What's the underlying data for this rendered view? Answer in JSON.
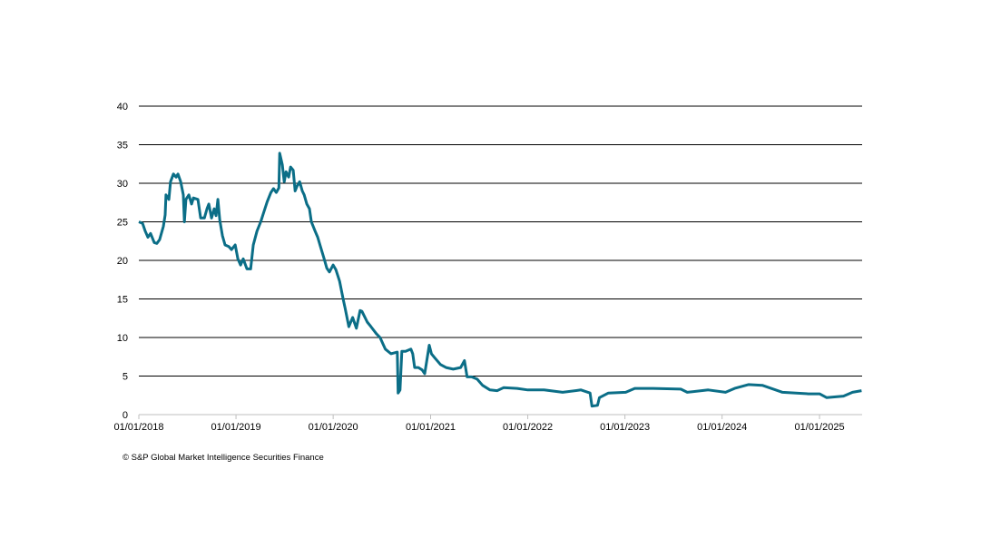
{
  "chart_data": {
    "type": "line",
    "title": "",
    "xlabel": "",
    "ylabel": "",
    "ylim": [
      0,
      40
    ],
    "yticks": [
      0,
      5,
      10,
      15,
      20,
      25,
      30,
      35,
      40
    ],
    "xlim": [
      "2018-01-01",
      "2025-06-10"
    ],
    "xticks": [
      "2018-01-01",
      "2019-01-01",
      "2020-01-01",
      "2021-01-01",
      "2022-01-01",
      "2023-01-01",
      "2024-01-01",
      "2025-01-01"
    ],
    "xtick_labels": [
      "01/01/2018",
      "01/01/2019",
      "01/01/2020",
      "01/01/2021",
      "01/01/2022",
      "01/01/2023",
      "01/01/2024",
      "01/01/2025"
    ],
    "grid": "horizontal",
    "line_color": "#0b6e87",
    "series": [
      {
        "x": [
          "2018-01-01",
          "2018-01-15",
          "2018-01-25",
          "2018-02-04",
          "2018-02-14",
          "2018-02-28",
          "2018-03-10",
          "2018-03-20",
          "2018-04-03",
          "2018-04-10",
          "2018-04-13",
          "2018-04-24",
          "2018-04-30",
          "2018-05-11",
          "2018-05-21",
          "2018-05-28",
          "2018-06-07",
          "2018-06-17",
          "2018-06-21",
          "2018-06-27",
          "2018-07-08",
          "2018-07-18",
          "2018-07-25",
          "2018-08-11",
          "2018-08-21",
          "2018-09-04",
          "2018-09-14",
          "2018-09-21",
          "2018-10-01",
          "2018-10-11",
          "2018-10-18",
          "2018-10-25",
          "2018-11-01",
          "2018-11-11",
          "2018-11-21",
          "2018-12-05",
          "2018-12-15",
          "2018-12-29",
          "2019-01-08",
          "2019-01-18",
          "2019-01-28",
          "2019-02-11",
          "2019-02-25",
          "2019-03-07",
          "2019-03-21",
          "2019-04-04",
          "2019-04-14",
          "2019-04-28",
          "2019-05-12",
          "2019-05-22",
          "2019-06-01",
          "2019-06-11",
          "2019-06-14",
          "2019-06-24",
          "2019-07-01",
          "2019-07-08",
          "2019-07-18",
          "2019-07-25",
          "2019-08-04",
          "2019-08-11",
          "2019-08-18",
          "2019-08-28",
          "2019-09-07",
          "2019-09-14",
          "2019-09-24",
          "2019-10-04",
          "2019-10-11",
          "2019-10-25",
          "2019-11-04",
          "2019-11-14",
          "2019-11-28",
          "2019-12-08",
          "2019-12-18",
          "2020-01-01",
          "2020-01-11",
          "2020-01-25",
          "2020-02-08",
          "2020-02-15",
          "2020-02-29",
          "2020-03-14",
          "2020-03-28",
          "2020-04-11",
          "2020-04-18",
          "2020-05-08",
          "2020-05-22",
          "2020-06-11",
          "2020-06-25",
          "2020-07-15",
          "2020-08-05",
          "2020-08-29",
          "2020-09-01",
          "2020-09-08",
          "2020-09-15",
          "2020-09-29",
          "2020-10-19",
          "2020-10-26",
          "2020-11-02",
          "2020-11-16",
          "2020-11-30",
          "2020-12-10",
          "2020-12-27",
          "2021-01-04",
          "2021-01-18",
          "2021-02-07",
          "2021-02-28",
          "2021-03-27",
          "2021-04-24",
          "2021-05-08",
          "2021-05-18",
          "2021-06-04",
          "2021-06-25",
          "2021-07-15",
          "2021-08-12",
          "2021-09-08",
          "2021-10-02",
          "2021-11-22",
          "2022-01-01",
          "2022-03-03",
          "2022-05-12",
          "2022-07-20",
          "2022-08-23",
          "2022-08-30",
          "2022-09-20",
          "2022-09-27",
          "2022-10-31",
          "2023-01-04",
          "2023-02-07",
          "2023-04-17",
          "2023-07-30",
          "2023-08-23",
          "2023-11-10",
          "2024-01-14",
          "2024-02-17",
          "2024-04-09",
          "2024-05-31",
          "2024-08-15",
          "2024-11-20",
          "2025-01-01",
          "2025-01-28",
          "2025-04-01",
          "2025-05-05",
          "2025-06-08"
        ],
        "y": [
          25.0,
          24.8,
          23.8,
          23.0,
          23.5,
          22.3,
          22.2,
          22.7,
          24.4,
          25.9,
          28.5,
          27.9,
          30.2,
          31.2,
          30.8,
          31.2,
          30.2,
          28.5,
          25.0,
          27.9,
          28.5,
          27.3,
          28.1,
          27.9,
          25.5,
          25.5,
          26.7,
          27.3,
          25.5,
          26.7,
          25.8,
          27.9,
          25.2,
          23.2,
          22.0,
          21.8,
          21.4,
          22.0,
          20.2,
          19.4,
          20.2,
          18.9,
          18.9,
          22.0,
          23.8,
          25.0,
          26.1,
          27.6,
          28.8,
          29.3,
          28.8,
          29.4,
          33.9,
          32.4,
          30.2,
          31.5,
          30.8,
          32.1,
          31.7,
          29.0,
          29.6,
          30.2,
          29.0,
          28.5,
          27.3,
          26.7,
          25.0,
          23.8,
          23.0,
          21.8,
          20.2,
          19.0,
          18.5,
          19.4,
          18.8,
          17.3,
          14.9,
          13.8,
          11.4,
          12.6,
          11.2,
          13.5,
          13.4,
          12.0,
          11.4,
          10.5,
          10.0,
          8.5,
          7.9,
          8.1,
          2.8,
          3.2,
          8.2,
          8.2,
          8.5,
          7.9,
          6.1,
          6.1,
          5.8,
          5.3,
          9.0,
          7.9,
          7.3,
          6.5,
          6.1,
          5.9,
          6.1,
          7.0,
          4.9,
          4.9,
          4.6,
          3.8,
          3.2,
          3.1,
          3.5,
          3.4,
          3.2,
          3.2,
          2.9,
          3.2,
          2.8,
          1.1,
          1.2,
          2.2,
          2.8,
          2.9,
          3.4,
          3.4,
          3.3,
          2.9,
          3.2,
          2.9,
          3.4,
          3.9,
          3.8,
          2.9,
          2.7,
          2.7,
          2.2,
          2.4,
          2.9,
          3.1
        ]
      }
    ]
  },
  "footer": {
    "source": "© S&P Global Market Intelligence Securities Finance"
  }
}
